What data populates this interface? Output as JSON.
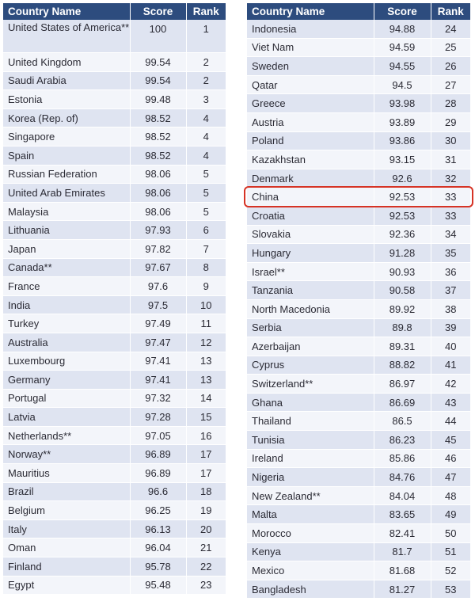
{
  "headers": {
    "name": "Country Name",
    "score": "Score",
    "rank": "Rank"
  },
  "left_rows": [
    {
      "name": "United States of America**",
      "score": "100",
      "rank": "1"
    },
    {
      "name": "United Kingdom",
      "score": "99.54",
      "rank": "2"
    },
    {
      "name": "Saudi Arabia",
      "score": "99.54",
      "rank": "2"
    },
    {
      "name": "Estonia",
      "score": "99.48",
      "rank": "3"
    },
    {
      "name": "Korea (Rep. of)",
      "score": "98.52",
      "rank": "4"
    },
    {
      "name": "Singapore",
      "score": "98.52",
      "rank": "4"
    },
    {
      "name": "Spain",
      "score": "98.52",
      "rank": "4"
    },
    {
      "name": "Russian Federation",
      "score": "98.06",
      "rank": "5"
    },
    {
      "name": "United Arab Emirates",
      "score": "98.06",
      "rank": "5"
    },
    {
      "name": "Malaysia",
      "score": "98.06",
      "rank": "5"
    },
    {
      "name": "Lithuania",
      "score": "97.93",
      "rank": "6"
    },
    {
      "name": "Japan",
      "score": "97.82",
      "rank": "7"
    },
    {
      "name": "Canada**",
      "score": "97.67",
      "rank": "8"
    },
    {
      "name": "France",
      "score": "97.6",
      "rank": "9"
    },
    {
      "name": "India",
      "score": "97.5",
      "rank": "10"
    },
    {
      "name": "Turkey",
      "score": "97.49",
      "rank": "11"
    },
    {
      "name": "Australia",
      "score": "97.47",
      "rank": "12"
    },
    {
      "name": "Luxembourg",
      "score": "97.41",
      "rank": "13"
    },
    {
      "name": "Germany",
      "score": "97.41",
      "rank": "13"
    },
    {
      "name": "Portugal",
      "score": "97.32",
      "rank": "14"
    },
    {
      "name": "Latvia",
      "score": "97.28",
      "rank": "15"
    },
    {
      "name": "Netherlands**",
      "score": "97.05",
      "rank": "16"
    },
    {
      "name": "Norway**",
      "score": "96.89",
      "rank": "17"
    },
    {
      "name": "Mauritius",
      "score": "96.89",
      "rank": "17"
    },
    {
      "name": "Brazil",
      "score": "96.6",
      "rank": "18"
    },
    {
      "name": "Belgium",
      "score": "96.25",
      "rank": "19"
    },
    {
      "name": "Italy",
      "score": "96.13",
      "rank": "20"
    },
    {
      "name": "Oman",
      "score": "96.04",
      "rank": "21"
    },
    {
      "name": "Finland",
      "score": "95.78",
      "rank": "22"
    },
    {
      "name": "Egypt",
      "score": "95.48",
      "rank": "23"
    }
  ],
  "right_rows": [
    {
      "name": "Indonesia",
      "score": "94.88",
      "rank": "24"
    },
    {
      "name": "Viet Nam",
      "score": "94.59",
      "rank": "25"
    },
    {
      "name": "Sweden",
      "score": "94.55",
      "rank": "26"
    },
    {
      "name": "Qatar",
      "score": "94.5",
      "rank": "27"
    },
    {
      "name": "Greece",
      "score": "93.98",
      "rank": "28"
    },
    {
      "name": "Austria",
      "score": "93.89",
      "rank": "29"
    },
    {
      "name": "Poland",
      "score": "93.86",
      "rank": "30"
    },
    {
      "name": "Kazakhstan",
      "score": "93.15",
      "rank": "31"
    },
    {
      "name": "Denmark",
      "score": "92.6",
      "rank": "32"
    },
    {
      "name": "China",
      "score": "92.53",
      "rank": "33"
    },
    {
      "name": "Croatia",
      "score": "92.53",
      "rank": "33"
    },
    {
      "name": "Slovakia",
      "score": "92.36",
      "rank": "34"
    },
    {
      "name": "Hungary",
      "score": "91.28",
      "rank": "35"
    },
    {
      "name": "Israel**",
      "score": "90.93",
      "rank": "36"
    },
    {
      "name": "Tanzania",
      "score": "90.58",
      "rank": "37"
    },
    {
      "name": "North Macedonia",
      "score": "89.92",
      "rank": "38"
    },
    {
      "name": "Serbia",
      "score": "89.8",
      "rank": "39"
    },
    {
      "name": "Azerbaijan",
      "score": "89.31",
      "rank": "40"
    },
    {
      "name": "Cyprus",
      "score": "88.82",
      "rank": "41"
    },
    {
      "name": "Switzerland**",
      "score": "86.97",
      "rank": "42"
    },
    {
      "name": "Ghana",
      "score": "86.69",
      "rank": "43"
    },
    {
      "name": "Thailand",
      "score": "86.5",
      "rank": "44"
    },
    {
      "name": "Tunisia",
      "score": "86.23",
      "rank": "45"
    },
    {
      "name": "Ireland",
      "score": "85.86",
      "rank": "46"
    },
    {
      "name": "Nigeria",
      "score": "84.76",
      "rank": "47"
    },
    {
      "name": "New Zealand**",
      "score": "84.04",
      "rank": "48"
    },
    {
      "name": "Malta",
      "score": "83.65",
      "rank": "49"
    },
    {
      "name": "Morocco",
      "score": "82.41",
      "rank": "50"
    },
    {
      "name": "Kenya",
      "score": "81.7",
      "rank": "51"
    },
    {
      "name": "Mexico",
      "score": "81.68",
      "rank": "52"
    },
    {
      "name": "Bangladesh",
      "score": "81.27",
      "rank": "53"
    }
  ],
  "highlight": {
    "country": "China",
    "color": "#d63325"
  },
  "colors": {
    "header_bg": "#2d4c7e",
    "row_odd": "#dfe4f1",
    "row_even": "#f3f5fa"
  }
}
